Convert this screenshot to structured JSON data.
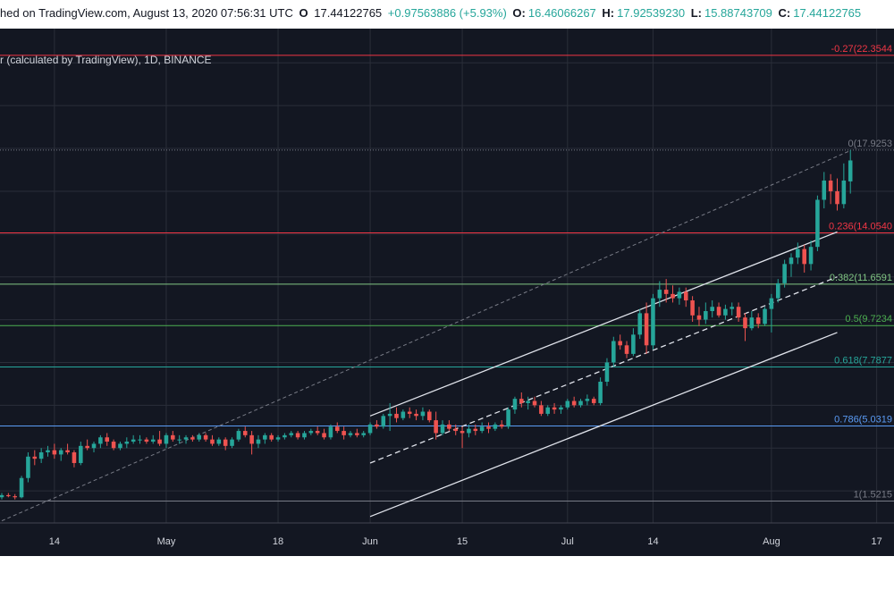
{
  "header": {
    "published": "hed on TradingView.com, August 13, 2020 07:56:31 UTC",
    "close_prefix": "O",
    "last": "17.44122765",
    "change": "+0.97563886 (+5.93%)",
    "open_key": "O:",
    "open": "16.46066267",
    "high_key": "H:",
    "high": "17.92539230",
    "low_key": "L:",
    "low": "15.88743709",
    "close_key": "C:",
    "close": "17.44122765"
  },
  "symbol_label": "r (calculated by TradingView), 1D, BINANCE",
  "colors": {
    "background": "#131722",
    "grid": "#2a2e39",
    "up": "#26a69a",
    "down": "#ef5350"
  },
  "chart_data": {
    "type": "candlestick",
    "interval": "1D",
    "x": {
      "start": "2020-04-06",
      "end": "2020-08-18"
    },
    "y": {
      "min": 0.5,
      "max": 23.6
    },
    "x_ticks": [
      {
        "date": "2020-04-14",
        "label": "14"
      },
      {
        "date": "2020-05-01",
        "label": "May"
      },
      {
        "date": "2020-05-18",
        "label": "18"
      },
      {
        "date": "2020-06-01",
        "label": "Jun"
      },
      {
        "date": "2020-06-15",
        "label": "15"
      },
      {
        "date": "2020-07-01",
        "label": "Jul"
      },
      {
        "date": "2020-07-14",
        "label": "14"
      },
      {
        "date": "2020-08-01",
        "label": "Aug"
      },
      {
        "date": "2020-08-17",
        "label": "17"
      }
    ],
    "fib_levels": [
      {
        "ratio": "-0.27",
        "value": "22.3544",
        "label": "-0.27(22.3544",
        "price": 22.3544,
        "color": "#f23645"
      },
      {
        "ratio": "0",
        "value": "17.9253",
        "label": "0(17.9253",
        "price": 17.9253,
        "color": "#787b86"
      },
      {
        "ratio": "0.236",
        "value": "14.0540",
        "label": "0.236(14.0540",
        "price": 14.054,
        "color": "#f23645"
      },
      {
        "ratio": "0.382",
        "value": "11.6591",
        "label": "0.382(11.6591",
        "price": 11.6591,
        "color": "#81c784"
      },
      {
        "ratio": "0.5",
        "value": "9.7234",
        "label": "0.5(9.7234",
        "price": 9.7234,
        "color": "#4caf50"
      },
      {
        "ratio": "0.618",
        "value": "7.7877",
        "label": "0.618(7.7877",
        "price": 7.7877,
        "color": "#26a69a"
      },
      {
        "ratio": "0.786",
        "value": "5.0319",
        "label": "0.786(5.0319",
        "price": 5.0319,
        "color": "#5b9cf6"
      },
      {
        "ratio": "1",
        "value": "1.5215",
        "label": "1(1.5215",
        "price": 1.5215,
        "color": "#787b86"
      }
    ],
    "channel": {
      "upper": [
        [
          "2020-06-01",
          5.5
        ],
        [
          "2020-08-11",
          14.1
        ]
      ],
      "middle": [
        [
          "2020-06-01",
          3.3
        ],
        [
          "2020-08-11",
          12.0
        ]
      ],
      "lower": [
        [
          "2020-06-01",
          0.8
        ],
        [
          "2020-08-11",
          9.4
        ]
      ]
    },
    "trend_line": [
      [
        "2020-04-06",
        0.6
      ],
      [
        "2020-08-13",
        17.9
      ]
    ],
    "candles": [
      [
        "2020-04-06",
        1.7,
        1.9,
        1.6,
        1.8
      ],
      [
        "2020-04-07",
        1.8,
        1.9,
        1.7,
        1.75
      ],
      [
        "2020-04-08",
        1.75,
        1.85,
        1.6,
        1.7
      ],
      [
        "2020-04-09",
        1.7,
        2.7,
        1.65,
        2.6
      ],
      [
        "2020-04-10",
        2.6,
        3.8,
        2.4,
        3.6
      ],
      [
        "2020-04-11",
        3.6,
        3.9,
        3.2,
        3.5
      ],
      [
        "2020-04-12",
        3.5,
        4.0,
        3.3,
        3.8
      ],
      [
        "2020-04-13",
        3.8,
        4.1,
        3.6,
        3.9
      ],
      [
        "2020-04-14",
        3.9,
        4.2,
        3.5,
        3.7
      ],
      [
        "2020-04-15",
        3.7,
        4.0,
        3.4,
        3.9
      ],
      [
        "2020-04-16",
        3.9,
        4.2,
        3.7,
        3.8
      ],
      [
        "2020-04-17",
        3.8,
        3.9,
        3.1,
        3.3
      ],
      [
        "2020-04-18",
        3.3,
        4.3,
        3.2,
        4.1
      ],
      [
        "2020-04-19",
        4.1,
        4.4,
        3.9,
        4.0
      ],
      [
        "2020-04-20",
        4.0,
        4.3,
        3.8,
        4.2
      ],
      [
        "2020-04-21",
        4.2,
        4.6,
        4.0,
        4.5
      ],
      [
        "2020-04-22",
        4.5,
        4.7,
        4.1,
        4.3
      ],
      [
        "2020-04-23",
        4.3,
        4.4,
        3.9,
        4.0
      ],
      [
        "2020-04-24",
        4.0,
        4.3,
        3.9,
        4.2
      ],
      [
        "2020-04-25",
        4.2,
        4.5,
        4.0,
        4.3
      ],
      [
        "2020-04-26",
        4.3,
        4.6,
        4.2,
        4.4
      ],
      [
        "2020-04-27",
        4.4,
        4.6,
        4.2,
        4.4
      ],
      [
        "2020-04-28",
        4.4,
        4.5,
        4.2,
        4.3
      ],
      [
        "2020-04-29",
        4.3,
        4.6,
        4.2,
        4.4
      ],
      [
        "2020-04-30",
        4.4,
        4.8,
        4.1,
        4.2
      ],
      [
        "2020-05-01",
        4.2,
        4.7,
        4.0,
        4.6
      ],
      [
        "2020-05-02",
        4.6,
        4.8,
        4.3,
        4.4
      ],
      [
        "2020-05-03",
        4.4,
        4.6,
        4.2,
        4.4
      ],
      [
        "2020-05-04",
        4.4,
        4.6,
        4.2,
        4.5
      ],
      [
        "2020-05-05",
        4.5,
        4.6,
        4.3,
        4.4
      ],
      [
        "2020-05-06",
        4.4,
        4.7,
        4.3,
        4.6
      ],
      [
        "2020-05-07",
        4.6,
        4.7,
        4.3,
        4.4
      ],
      [
        "2020-05-08",
        4.4,
        4.6,
        4.1,
        4.2
      ],
      [
        "2020-05-09",
        4.2,
        4.5,
        4.1,
        4.4
      ],
      [
        "2020-05-10",
        4.4,
        4.5,
        3.9,
        4.1
      ],
      [
        "2020-05-11",
        4.1,
        4.5,
        4.0,
        4.4
      ],
      [
        "2020-05-12",
        4.4,
        4.9,
        4.3,
        4.8
      ],
      [
        "2020-05-13",
        4.8,
        5.0,
        4.5,
        4.6
      ],
      [
        "2020-05-14",
        4.6,
        4.8,
        3.7,
        4.2
      ],
      [
        "2020-05-15",
        4.2,
        4.6,
        4.0,
        4.4
      ],
      [
        "2020-05-16",
        4.4,
        4.7,
        4.2,
        4.6
      ],
      [
        "2020-05-17",
        4.6,
        4.7,
        4.3,
        4.4
      ],
      [
        "2020-05-18",
        4.4,
        4.6,
        4.3,
        4.5
      ],
      [
        "2020-05-19",
        4.5,
        4.7,
        4.4,
        4.6
      ],
      [
        "2020-05-20",
        4.6,
        4.8,
        4.5,
        4.7
      ],
      [
        "2020-05-21",
        4.7,
        4.8,
        4.4,
        4.5
      ],
      [
        "2020-05-22",
        4.5,
        4.8,
        4.4,
        4.7
      ],
      [
        "2020-05-23",
        4.7,
        4.9,
        4.6,
        4.8
      ],
      [
        "2020-05-24",
        4.8,
        5.0,
        4.6,
        4.7
      ],
      [
        "2020-05-25",
        4.7,
        4.9,
        4.4,
        4.5
      ],
      [
        "2020-05-26",
        4.5,
        5.1,
        4.4,
        5.0
      ],
      [
        "2020-05-27",
        5.0,
        5.2,
        4.7,
        4.8
      ],
      [
        "2020-05-28",
        4.8,
        5.0,
        4.4,
        4.6
      ],
      [
        "2020-05-29",
        4.6,
        4.8,
        4.5,
        4.7
      ],
      [
        "2020-05-30",
        4.7,
        4.9,
        4.5,
        4.6
      ],
      [
        "2020-05-31",
        4.6,
        4.8,
        4.5,
        4.7
      ],
      [
        "2020-06-01",
        4.7,
        5.2,
        4.6,
        5.1
      ],
      [
        "2020-06-02",
        5.1,
        5.3,
        4.9,
        5.0
      ],
      [
        "2020-06-03",
        5.0,
        5.6,
        4.9,
        5.5
      ],
      [
        "2020-06-04",
        5.5,
        6.1,
        4.8,
        5.6
      ],
      [
        "2020-06-05",
        5.6,
        5.9,
        5.2,
        5.4
      ],
      [
        "2020-06-06",
        5.4,
        5.8,
        5.3,
        5.7
      ],
      [
        "2020-06-07",
        5.7,
        5.9,
        5.4,
        5.6
      ],
      [
        "2020-06-08",
        5.6,
        5.8,
        5.3,
        5.5
      ],
      [
        "2020-06-09",
        5.5,
        5.9,
        5.3,
        5.7
      ],
      [
        "2020-06-10",
        5.7,
        5.8,
        5.2,
        5.3
      ],
      [
        "2020-06-11",
        5.3,
        5.7,
        4.4,
        4.7
      ],
      [
        "2020-06-12",
        4.7,
        5.3,
        4.6,
        5.1
      ],
      [
        "2020-06-13",
        5.1,
        5.3,
        4.8,
        4.9
      ],
      [
        "2020-06-14",
        4.9,
        5.1,
        4.6,
        4.8
      ],
      [
        "2020-06-15",
        4.8,
        5.0,
        4.0,
        4.7
      ],
      [
        "2020-06-16",
        4.7,
        5.1,
        4.5,
        4.9
      ],
      [
        "2020-06-17",
        4.9,
        5.1,
        4.6,
        4.8
      ],
      [
        "2020-06-18",
        4.8,
        5.2,
        4.7,
        5.0
      ],
      [
        "2020-06-19",
        5.0,
        5.2,
        4.7,
        4.9
      ],
      [
        "2020-06-20",
        4.9,
        5.2,
        4.8,
        5.1
      ],
      [
        "2020-06-21",
        5.1,
        5.3,
        4.9,
        5.0
      ],
      [
        "2020-06-22",
        5.0,
        5.9,
        4.9,
        5.8
      ],
      [
        "2020-06-23",
        5.8,
        6.4,
        5.6,
        6.3
      ],
      [
        "2020-06-24",
        6.3,
        6.6,
        5.9,
        6.1
      ],
      [
        "2020-06-25",
        6.1,
        6.4,
        5.8,
        6.2
      ],
      [
        "2020-06-26",
        6.2,
        6.4,
        5.9,
        6.0
      ],
      [
        "2020-06-27",
        6.0,
        6.2,
        5.5,
        5.6
      ],
      [
        "2020-06-28",
        5.6,
        6.0,
        5.5,
        5.9
      ],
      [
        "2020-06-29",
        5.9,
        6.1,
        5.6,
        5.8
      ],
      [
        "2020-06-30",
        5.8,
        6.0,
        5.6,
        5.9
      ],
      [
        "2020-07-01",
        5.9,
        6.3,
        5.8,
        6.2
      ],
      [
        "2020-07-02",
        6.2,
        6.4,
        5.9,
        6.0
      ],
      [
        "2020-07-03",
        6.0,
        6.3,
        5.9,
        6.2
      ],
      [
        "2020-07-04",
        6.2,
        6.5,
        6.0,
        6.3
      ],
      [
        "2020-07-05",
        6.3,
        6.4,
        6.0,
        6.1
      ],
      [
        "2020-07-06",
        6.1,
        7.3,
        6.0,
        7.1
      ],
      [
        "2020-07-07",
        7.1,
        8.2,
        6.9,
        8.0
      ],
      [
        "2020-07-08",
        8.0,
        9.2,
        7.8,
        9.0
      ],
      [
        "2020-07-09",
        9.0,
        9.3,
        8.6,
        8.8
      ],
      [
        "2020-07-10",
        8.8,
        9.0,
        8.2,
        8.4
      ],
      [
        "2020-07-11",
        8.4,
        9.6,
        8.3,
        9.3
      ],
      [
        "2020-07-12",
        9.3,
        10.5,
        9.1,
        10.3
      ],
      [
        "2020-07-13",
        10.3,
        10.8,
        8.4,
        8.8
      ],
      [
        "2020-07-14",
        8.8,
        11.2,
        8.6,
        11.0
      ],
      [
        "2020-07-15",
        11.0,
        11.8,
        10.6,
        11.4
      ],
      [
        "2020-07-16",
        11.4,
        11.9,
        10.8,
        11.2
      ],
      [
        "2020-07-17",
        11.2,
        11.6,
        10.8,
        11.0
      ],
      [
        "2020-07-18",
        11.0,
        11.5,
        10.7,
        11.3
      ],
      [
        "2020-07-19",
        11.3,
        11.5,
        10.6,
        10.9
      ],
      [
        "2020-07-20",
        10.9,
        11.1,
        9.9,
        10.2
      ],
      [
        "2020-07-21",
        10.2,
        10.6,
        9.7,
        10.0
      ],
      [
        "2020-07-22",
        10.0,
        10.8,
        9.8,
        10.4
      ],
      [
        "2020-07-23",
        10.4,
        10.9,
        10.1,
        10.6
      ],
      [
        "2020-07-24",
        10.6,
        10.8,
        10.1,
        10.2
      ],
      [
        "2020-07-25",
        10.2,
        10.7,
        10.0,
        10.5
      ],
      [
        "2020-07-26",
        10.5,
        10.8,
        10.2,
        10.6
      ],
      [
        "2020-07-27",
        10.6,
        10.8,
        9.9,
        10.1
      ],
      [
        "2020-07-28",
        10.1,
        10.3,
        9.0,
        9.6
      ],
      [
        "2020-07-29",
        9.6,
        10.4,
        9.5,
        10.1
      ],
      [
        "2020-07-30",
        10.1,
        10.3,
        9.6,
        9.8
      ],
      [
        "2020-07-31",
        9.8,
        10.6,
        9.7,
        10.5
      ],
      [
        "2020-08-01",
        10.5,
        11.2,
        9.4,
        11.0
      ],
      [
        "2020-08-02",
        11.0,
        11.9,
        10.8,
        11.7
      ],
      [
        "2020-08-03",
        11.7,
        12.8,
        11.5,
        12.6
      ],
      [
        "2020-08-04",
        12.6,
        13.1,
        12.0,
        12.9
      ],
      [
        "2020-08-05",
        12.9,
        13.6,
        12.6,
        13.3
      ],
      [
        "2020-08-06",
        13.3,
        13.5,
        12.2,
        12.6
      ],
      [
        "2020-08-07",
        12.6,
        13.7,
        12.3,
        13.4
      ],
      [
        "2020-08-08",
        13.4,
        15.8,
        13.2,
        15.6
      ],
      [
        "2020-08-09",
        15.6,
        16.9,
        15.2,
        16.5
      ],
      [
        "2020-08-10",
        16.5,
        16.8,
        15.4,
        16.0
      ],
      [
        "2020-08-11",
        16.0,
        16.6,
        15.1,
        15.4
      ],
      [
        "2020-08-12",
        15.4,
        17.3,
        15.2,
        16.5
      ],
      [
        "2020-08-13",
        16.46,
        17.93,
        15.89,
        17.44
      ]
    ]
  }
}
